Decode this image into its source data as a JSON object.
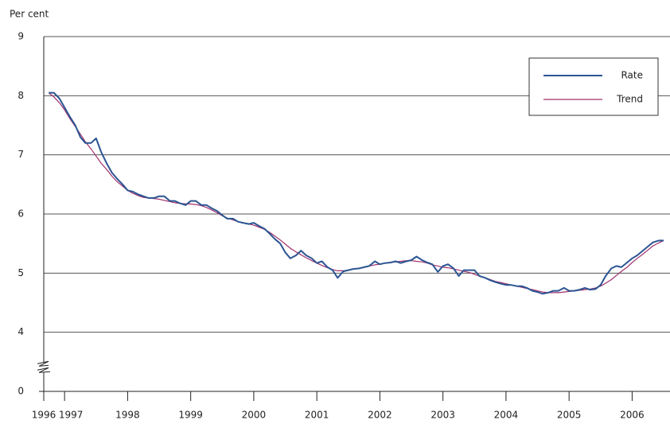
{
  "chart_data": {
    "type": "line",
    "y_label": "Per cent",
    "x": [
      1996.75,
      1996.83,
      1996.92,
      1997.0,
      1997.08,
      1997.17,
      1997.25,
      1997.33,
      1997.42,
      1997.5,
      1997.58,
      1997.67,
      1997.75,
      1997.83,
      1997.92,
      1998.0,
      1998.08,
      1998.17,
      1998.25,
      1998.33,
      1998.42,
      1998.5,
      1998.58,
      1998.67,
      1998.75,
      1998.83,
      1998.92,
      1999.0,
      1999.08,
      1999.17,
      1999.25,
      1999.33,
      1999.42,
      1999.5,
      1999.58,
      1999.67,
      1999.75,
      1999.83,
      1999.92,
      2000.0,
      2000.08,
      2000.17,
      2000.25,
      2000.33,
      2000.42,
      2000.5,
      2000.58,
      2000.67,
      2000.75,
      2000.83,
      2000.92,
      2001.0,
      2001.08,
      2001.17,
      2001.25,
      2001.33,
      2001.42,
      2001.5,
      2001.58,
      2001.67,
      2001.75,
      2001.83,
      2001.92,
      2002.0,
      2002.08,
      2002.17,
      2002.25,
      2002.33,
      2002.42,
      2002.5,
      2002.58,
      2002.67,
      2002.75,
      2002.83,
      2002.92,
      2003.0,
      2003.08,
      2003.17,
      2003.25,
      2003.33,
      2003.42,
      2003.5,
      2003.58,
      2003.67,
      2003.75,
      2003.83,
      2003.92,
      2004.0,
      2004.08,
      2004.17,
      2004.25,
      2004.33,
      2004.42,
      2004.5,
      2004.58,
      2004.67,
      2004.75,
      2004.83,
      2004.92,
      2005.0,
      2005.08,
      2005.17,
      2005.25,
      2005.33,
      2005.42,
      2005.5,
      2005.58,
      2005.67,
      2005.75,
      2005.83,
      2005.92,
      2006.0,
      2006.08,
      2006.17,
      2006.25,
      2006.33,
      2006.42,
      2006.5
    ],
    "series": [
      {
        "name": "Rate",
        "color": "#2b5592",
        "width": 2,
        "values": [
          8.05,
          8.05,
          7.95,
          7.8,
          7.65,
          7.5,
          7.3,
          7.2,
          7.2,
          7.28,
          7.05,
          6.85,
          6.7,
          6.6,
          6.5,
          6.4,
          6.38,
          6.33,
          6.3,
          6.27,
          6.27,
          6.3,
          6.3,
          6.22,
          6.22,
          6.18,
          6.15,
          6.22,
          6.22,
          6.15,
          6.15,
          6.1,
          6.05,
          5.98,
          5.92,
          5.92,
          5.87,
          5.85,
          5.83,
          5.85,
          5.8,
          5.75,
          5.67,
          5.58,
          5.5,
          5.35,
          5.25,
          5.3,
          5.38,
          5.3,
          5.25,
          5.17,
          5.2,
          5.1,
          5.05,
          4.92,
          5.03,
          5.05,
          5.07,
          5.08,
          5.1,
          5.12,
          5.2,
          5.15,
          5.17,
          5.18,
          5.2,
          5.17,
          5.2,
          5.22,
          5.28,
          5.22,
          5.18,
          5.15,
          5.02,
          5.12,
          5.15,
          5.08,
          4.95,
          5.05,
          5.05,
          5.05,
          4.95,
          4.92,
          4.88,
          4.85,
          4.82,
          4.8,
          4.8,
          4.78,
          4.78,
          4.75,
          4.7,
          4.68,
          4.65,
          4.67,
          4.7,
          4.7,
          4.75,
          4.7,
          4.7,
          4.72,
          4.75,
          4.72,
          4.73,
          4.8,
          4.95,
          5.08,
          5.12,
          5.1,
          5.18,
          5.25,
          5.3,
          5.38,
          5.45,
          5.52,
          5.55,
          5.55
        ]
      },
      {
        "name": "Trend",
        "color": "#a0306e",
        "width": 1.2,
        "values": [
          8.05,
          7.98,
          7.88,
          7.76,
          7.62,
          7.48,
          7.35,
          7.22,
          7.1,
          6.98,
          6.86,
          6.75,
          6.64,
          6.55,
          6.47,
          6.4,
          6.35,
          6.31,
          6.28,
          6.27,
          6.26,
          6.25,
          6.23,
          6.21,
          6.19,
          6.18,
          6.17,
          6.17,
          6.16,
          6.14,
          6.11,
          6.07,
          6.02,
          5.97,
          5.93,
          5.9,
          5.87,
          5.85,
          5.83,
          5.81,
          5.78,
          5.74,
          5.69,
          5.63,
          5.56,
          5.49,
          5.42,
          5.36,
          5.31,
          5.26,
          5.21,
          5.17,
          5.13,
          5.09,
          5.06,
          5.04,
          5.04,
          5.05,
          5.07,
          5.08,
          5.1,
          5.12,
          5.14,
          5.15,
          5.17,
          5.18,
          5.19,
          5.2,
          5.21,
          5.21,
          5.2,
          5.19,
          5.17,
          5.14,
          5.12,
          5.1,
          5.09,
          5.07,
          5.05,
          5.03,
          5.01,
          4.98,
          4.95,
          4.92,
          4.89,
          4.86,
          4.84,
          4.82,
          4.8,
          4.78,
          4.76,
          4.74,
          4.72,
          4.7,
          4.68,
          4.67,
          4.67,
          4.67,
          4.68,
          4.69,
          4.7,
          4.71,
          4.72,
          4.73,
          4.75,
          4.78,
          4.83,
          4.89,
          4.96,
          5.03,
          5.1,
          5.18,
          5.25,
          5.32,
          5.39,
          5.46,
          5.51,
          5.55
        ]
      }
    ],
    "xlim": [
      1996.67,
      2006.55
    ],
    "xticks": [
      {
        "value": 1996.67,
        "label": "1996"
      },
      1997,
      1998,
      1999,
      2000,
      2001,
      2002,
      2003,
      2004,
      2005,
      2006
    ],
    "ylim": [
      0,
      9
    ],
    "yticks": [
      0,
      4,
      5,
      6,
      7,
      8,
      9
    ],
    "axis_break": [
      0,
      4
    ],
    "grid": true,
    "legend": "top-right"
  }
}
